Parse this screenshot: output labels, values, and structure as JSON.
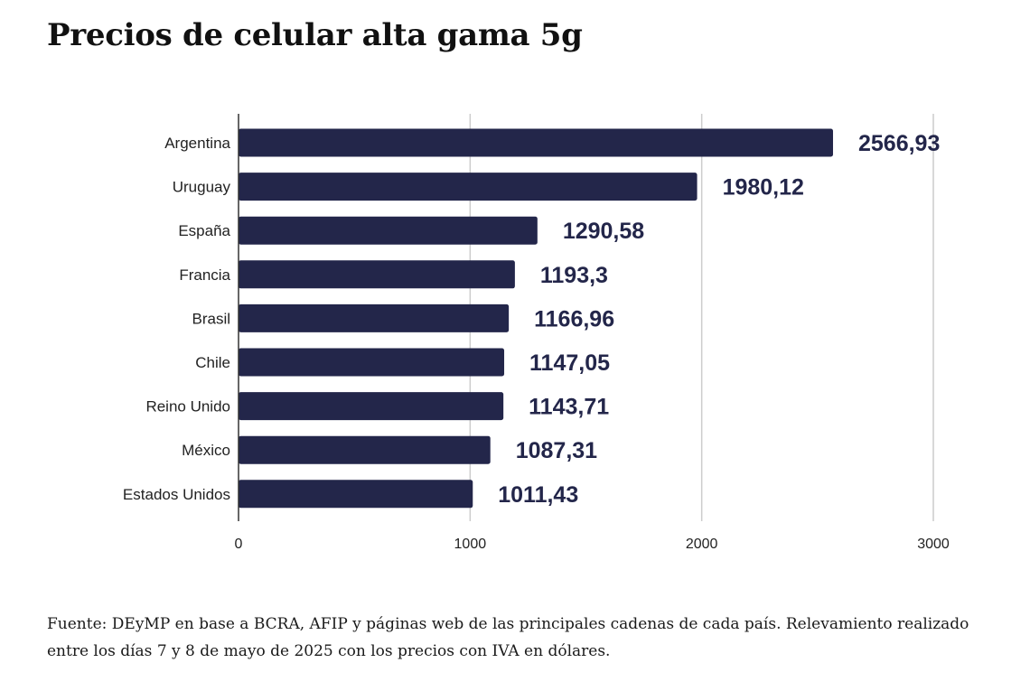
{
  "title": "Precios de celular alta gama 5g",
  "source_note": "Fuente: DEyMP en base a BCRA, AFIP y páginas web de las principales cadenas de cada país. Relevamiento realizado entre los días 7 y 8 de mayo de 2025 con los precios con IVA en dólares.",
  "chart_data": {
    "type": "bar",
    "orientation": "horizontal",
    "categories": [
      "Argentina",
      "Uruguay",
      "España",
      "Francia",
      "Brasil",
      "Chile",
      "Reino Unido",
      "México",
      "Estados Unidos"
    ],
    "values": [
      2566.93,
      1980.12,
      1290.58,
      1193.3,
      1166.96,
      1147.05,
      1143.71,
      1087.31,
      1011.43
    ],
    "value_labels": [
      "2566,93",
      "1980,12",
      "1290,58",
      "1193,3",
      "1166,96",
      "1147,05",
      "1143,71",
      "1087,31",
      "1011,43"
    ],
    "xlim": [
      0,
      3000
    ],
    "xticks": [
      0,
      1000,
      2000,
      3000
    ],
    "grid": true,
    "bar_color": "#23264a",
    "label_color": "#23264a",
    "grid_color": "#cccccc",
    "axis_color": "#333333"
  }
}
